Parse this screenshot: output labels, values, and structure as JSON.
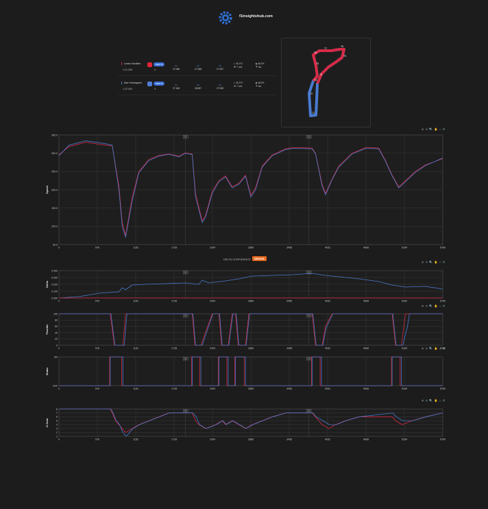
{
  "site": {
    "name": "f1insightshub.com",
    "logo_icon": "gear-logo-icon"
  },
  "drivers": [
    {
      "name": "Lewis Hamilton",
      "color": "#e0263a",
      "lap_time": "1:21.049",
      "tyre": "NEW M",
      "compound": "S",
      "sectors": [
        {
          "label": "S1",
          "value": "27.085"
        },
        {
          "label": "S2",
          "value": "27.288"
        },
        {
          "label": "S3",
          "value": "27.067"
        }
      ],
      "weather": {
        "air": "26.3°C",
        "wind": "7 m/s",
        "humidity": "48.2%",
        "rain": "No"
      }
    },
    {
      "name": "Max Verstappen",
      "color": "#4f7fd6",
      "lap_time": "1:22.000",
      "tyre": "NEW M",
      "compound": "S",
      "sectors": [
        {
          "label": "S1",
          "value": "27.186"
        },
        {
          "label": "S2",
          "value": "26.857"
        },
        {
          "label": "S3",
          "value": "27.083"
        }
      ],
      "weather": {
        "air": "26.3°C",
        "wind": "7 m/s",
        "humidity": "48.2%",
        "rain": "No"
      }
    }
  ],
  "track_labels": [
    "T1",
    "T2",
    "T3",
    "T4",
    "T5",
    "T6",
    "T7",
    "T8",
    "T9"
  ],
  "delta": {
    "label": "DELTA CONFIDENCE",
    "badge": "MEDIUM"
  },
  "toolbar_icons": "⊕ ⊖ 🔍 ✋ ⌂ ☰",
  "chart_data": [
    {
      "type": "line",
      "ylabel": "Speed",
      "ylim": [
        50,
        350
      ],
      "yticks": [
        "50.0",
        "100.0",
        "150.0",
        "200.0",
        "250.0",
        "300.0",
        "350.0"
      ],
      "xlim": [
        0,
        5760
      ],
      "xticks": [
        "0",
        "576",
        "1152",
        "1728",
        "2304",
        "2880",
        "3456",
        "4032",
        "4608",
        "5184",
        "5760"
      ],
      "sector_markers": [
        {
          "x": 1900,
          "label": "S2"
        },
        {
          "x": 3750,
          "label": "S3"
        }
      ],
      "series": [
        {
          "name": "Lewis Hamilton",
          "color": "#d62a45",
          "x": [
            0,
            150,
            400,
            700,
            800,
            900,
            950,
            1000,
            1100,
            1200,
            1350,
            1500,
            1650,
            1800,
            1900,
            2000,
            2050,
            2150,
            2200,
            2300,
            2400,
            2500,
            2600,
            2700,
            2800,
            2880,
            2950,
            3050,
            3200,
            3400,
            3500,
            3650,
            3800,
            3850,
            3950,
            4000,
            4100,
            4200,
            4400,
            4600,
            4700,
            4800,
            4900,
            5000,
            5100,
            5200,
            5350,
            5500,
            5760
          ],
          "y": [
            296,
            318,
            330,
            322,
            320,
            210,
            110,
            75,
            180,
            250,
            283,
            294,
            298,
            292,
            301,
            298,
            190,
            115,
            130,
            195,
            225,
            238,
            208,
            218,
            240,
            185,
            205,
            265,
            295,
            312,
            315,
            315,
            314,
            300,
            215,
            190,
            230,
            265,
            300,
            315,
            315,
            314,
            280,
            240,
            208,
            225,
            250,
            268,
            285
          ]
        },
        {
          "name": "Max Verstappen",
          "color": "#4a7bd0",
          "x": [
            0,
            150,
            400,
            700,
            800,
            900,
            950,
            1000,
            1100,
            1200,
            1350,
            1500,
            1650,
            1800,
            1900,
            2000,
            2050,
            2150,
            2200,
            2300,
            2400,
            2500,
            2600,
            2700,
            2800,
            2880,
            2950,
            3050,
            3200,
            3400,
            3500,
            3650,
            3800,
            3850,
            3950,
            4000,
            4100,
            4200,
            4400,
            4600,
            4700,
            4800,
            4900,
            5000,
            5100,
            5200,
            5350,
            5500,
            5760
          ],
          "y": [
            293,
            322,
            334,
            326,
            322,
            200,
            100,
            70,
            170,
            247,
            280,
            292,
            297,
            290,
            300,
            296,
            180,
            110,
            125,
            190,
            222,
            235,
            205,
            215,
            237,
            180,
            200,
            262,
            293,
            310,
            313,
            313,
            312,
            298,
            210,
            186,
            228,
            262,
            298,
            313,
            313,
            312,
            278,
            238,
            205,
            222,
            248,
            266,
            287
          ]
        }
      ]
    },
    {
      "type": "line",
      "ylabel": "Delta",
      "ylim": [
        0,
        0.4
      ],
      "yticks": [
        "0.000",
        "0.100",
        "0.200",
        "0.300",
        "0.400"
      ],
      "xlim": [
        0,
        5760
      ],
      "xticks": [
        "0",
        "576",
        "1152",
        "1728",
        "2304",
        "2880",
        "3456",
        "4032",
        "4608",
        "5184",
        "5760"
      ],
      "sector_markers": [
        {
          "x": 1900,
          "label": "S2"
        },
        {
          "x": 3750,
          "label": "S3"
        }
      ],
      "series": [
        {
          "name": "Max Verstappen",
          "color": "#4a7bd0",
          "x": [
            0,
            300,
            600,
            900,
            950,
            1000,
            1100,
            1300,
            1600,
            1900,
            2100,
            2150,
            2250,
            2500,
            2700,
            2900,
            3200,
            3500,
            3800,
            4000,
            4200,
            4500,
            4800,
            5000,
            5200,
            5500,
            5760
          ],
          "y": [
            0.0,
            0.02,
            0.07,
            0.09,
            0.15,
            0.12,
            0.19,
            0.2,
            0.21,
            0.22,
            0.2,
            0.26,
            0.22,
            0.25,
            0.28,
            0.32,
            0.33,
            0.34,
            0.36,
            0.33,
            0.31,
            0.28,
            0.24,
            0.19,
            0.16,
            0.17,
            0.13
          ]
        },
        {
          "name": "Lewis Hamilton",
          "color": "#d62a45",
          "x": [
            0,
            5760
          ],
          "y": [
            0,
            0
          ]
        }
      ]
    },
    {
      "type": "line",
      "ylabel": "Throttle",
      "ylim": [
        0,
        100
      ],
      "yticks": [
        "0",
        "20",
        "40",
        "60",
        "80",
        "100"
      ],
      "xlim": [
        0,
        5760
      ],
      "xticks": [
        "0",
        "576",
        "1152",
        "1728",
        "2304",
        "2880",
        "3456",
        "4032",
        "4608",
        "5184",
        "5760"
      ],
      "sector_markers": [
        {
          "x": 1900,
          "label": "S2"
        },
        {
          "x": 3750,
          "label": "S3"
        }
      ],
      "series": [
        {
          "name": "Lewis Hamilton",
          "color": "#d62a45",
          "x": [
            0,
            770,
            830,
            960,
            1000,
            2000,
            2040,
            2130,
            2300,
            2400,
            2440,
            2540,
            2600,
            2650,
            2690,
            2800,
            2850,
            3800,
            3850,
            3950,
            4000,
            4100,
            5000,
            5050,
            5140,
            5200,
            5760
          ],
          "y": [
            100,
            100,
            0,
            0,
            100,
            100,
            0,
            0,
            100,
            100,
            0,
            0,
            100,
            100,
            0,
            0,
            100,
            100,
            0,
            0,
            60,
            100,
            100,
            0,
            0,
            100,
            100
          ]
        },
        {
          "name": "Max Verstappen",
          "color": "#4a7bd0",
          "x": [
            0,
            780,
            840,
            980,
            1020,
            2010,
            2050,
            2150,
            2310,
            2410,
            2450,
            2550,
            2610,
            2660,
            2700,
            2810,
            2860,
            3810,
            3860,
            3960,
            4010,
            4110,
            5010,
            5060,
            5160,
            5230,
            5260,
            5760
          ],
          "y": [
            100,
            100,
            0,
            0,
            100,
            100,
            0,
            0,
            100,
            100,
            0,
            0,
            100,
            100,
            0,
            0,
            100,
            100,
            0,
            0,
            55,
            100,
            100,
            0,
            0,
            60,
            100,
            100
          ]
        }
      ]
    },
    {
      "type": "line",
      "ylabel": "Brake",
      "ylim": [
        0,
        1
      ],
      "yticks": [
        "OFF",
        "ON"
      ],
      "xlim": [
        0,
        5760
      ],
      "xticks": [
        "0",
        "576",
        "1152",
        "1728",
        "2304",
        "2880",
        "3456",
        "4032",
        "4608",
        "5184",
        "5760"
      ],
      "sector_markers": [
        {
          "x": 1900,
          "label": "S2"
        },
        {
          "x": 3750,
          "label": "S3"
        }
      ],
      "series": [
        {
          "name": "Lewis Hamilton",
          "color": "#d62a45",
          "x": [
            0,
            760,
            760,
            940,
            940,
            1990,
            1990,
            2110,
            2110,
            2390,
            2390,
            2520,
            2520,
            2640,
            2640,
            2780,
            2780,
            3790,
            3790,
            3920,
            3920,
            4990,
            4990,
            5120,
            5120,
            5760
          ],
          "y": [
            0,
            0,
            1,
            1,
            0,
            0,
            1,
            1,
            0,
            0,
            1,
            1,
            0,
            0,
            1,
            1,
            0,
            0,
            1,
            1,
            0,
            0,
            1,
            1,
            0,
            0
          ]
        },
        {
          "name": "Max Verstappen",
          "color": "#4a7bd0",
          "x": [
            0,
            770,
            770,
            960,
            960,
            2000,
            2000,
            2130,
            2130,
            2400,
            2400,
            2540,
            2540,
            2650,
            2650,
            2800,
            2800,
            3800,
            3800,
            3940,
            3940,
            5000,
            5000,
            5140,
            5140,
            5760
          ],
          "y": [
            0,
            0,
            1,
            1,
            0,
            0,
            1,
            1,
            0,
            0,
            1,
            1,
            0,
            0,
            1,
            1,
            0,
            0,
            1,
            1,
            0,
            0,
            1,
            1,
            0,
            0
          ]
        }
      ]
    },
    {
      "type": "line",
      "ylabel": "N Gear",
      "ylim": [
        1,
        8
      ],
      "yticks": [
        "1",
        "2",
        "3",
        "4",
        "5",
        "6",
        "7",
        "8"
      ],
      "xlim": [
        0,
        5760
      ],
      "xticks": [
        "0",
        "576",
        "1152",
        "1728",
        "2304",
        "2880",
        "3456",
        "4032",
        "4608",
        "5184",
        "5760"
      ],
      "sector_markers": [
        {
          "x": 1900,
          "label": "S2"
        },
        {
          "x": 3750,
          "label": "S3"
        }
      ],
      "series": [
        {
          "name": "Lewis Hamilton",
          "color": "#d62a45",
          "x": [
            0,
            770,
            800,
            850,
            900,
            950,
            1000,
            1100,
            1200,
            1350,
            1500,
            1650,
            2000,
            2050,
            2100,
            2200,
            2350,
            2450,
            2500,
            2600,
            2700,
            2800,
            2900,
            3050,
            3200,
            3400,
            3800,
            3850,
            3950,
            4050,
            4150,
            4300,
            4500,
            5000,
            5050,
            5150,
            5300,
            5500,
            5760
          ],
          "y": [
            8,
            8,
            7,
            5,
            4,
            3,
            2,
            3,
            4,
            5,
            6,
            7,
            7,
            5,
            4,
            3,
            4,
            5,
            4,
            5,
            4,
            3,
            4,
            5,
            6,
            7,
            7,
            6,
            4,
            3,
            4,
            5,
            6,
            6,
            5,
            4,
            5,
            6,
            7
          ]
        },
        {
          "name": "Max Verstappen",
          "color": "#4a7bd0",
          "x": [
            0,
            780,
            810,
            860,
            910,
            960,
            1010,
            1110,
            1210,
            1360,
            1510,
            1660,
            2010,
            2060,
            2110,
            2210,
            2360,
            2460,
            2510,
            2610,
            2710,
            2810,
            2910,
            3060,
            3210,
            3410,
            3810,
            3860,
            3960,
            4060,
            4160,
            4310,
            4510,
            5010,
            5060,
            5160,
            5310,
            5510,
            5760
          ],
          "y": [
            8,
            8,
            7,
            5,
            4,
            2,
            1,
            3,
            4,
            5,
            6,
            7,
            7,
            6,
            4,
            3,
            4,
            5,
            4,
            5,
            4,
            3,
            4,
            5,
            6,
            7,
            7,
            6,
            5,
            4,
            4,
            5,
            6,
            7,
            6,
            5,
            5,
            6,
            7
          ]
        }
      ]
    }
  ]
}
